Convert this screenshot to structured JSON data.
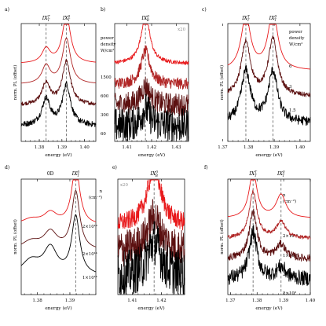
{
  "colors": {
    "red": "#e8181a",
    "mid": "#b02424",
    "dark": "#5c1111",
    "black": "#000000",
    "dash": "#6e6e6e"
  },
  "chart_data": [
    {
      "id": "a",
      "type": "line",
      "panel_label": "a)",
      "xlabel": "energy (eV)",
      "ylabel": "norm. PL (offset)",
      "xlim": [
        1.372,
        1.405
      ],
      "x_ticks": [
        "1.38",
        "1.39",
        "1.40"
      ],
      "x_tick_values": [
        1.38,
        1.39,
        1.4
      ],
      "dashed_markers": [
        {
          "label": "IX",
          "sup": "T",
          "sub": "T",
          "x": 1.383
        },
        {
          "label": "IX",
          "sup": "0",
          "sub": "T",
          "x": 1.392
        }
      ],
      "legend_header": [
        "power",
        "density",
        "W/cm²"
      ],
      "peaks": [
        {
          "center": 1.383,
          "width": 0.0022
        },
        {
          "center": 1.392,
          "width": 0.0022
        }
      ],
      "series": [
        {
          "name": "1500",
          "color": "red",
          "amplitudes": [
            0.3,
            1.0
          ],
          "noise": 0.0
        },
        {
          "name": "600",
          "color": "mid",
          "amplitudes": [
            0.38,
            0.95
          ],
          "noise": 0.0
        },
        {
          "name": "300",
          "color": "dark",
          "amplitudes": [
            0.45,
            0.9
          ],
          "noise": 0.01
        },
        {
          "name": "60",
          "color": "black",
          "amplitudes": [
            0.55,
            0.85
          ],
          "noise": 0.015
        }
      ]
    },
    {
      "id": "b",
      "type": "line",
      "panel_label": "b)",
      "xlabel": "energy (eV)",
      "ylabel": "",
      "xlim": [
        1.405,
        1.435
      ],
      "x_ticks": [
        "1.41",
        "1.42",
        "1.43"
      ],
      "x_tick_values": [
        1.41,
        1.42,
        1.43
      ],
      "dashed_markers": [
        {
          "label": "IX",
          "sup": "0",
          "sub": "B",
          "x": 1.4175
        }
      ],
      "scale_note": "x20",
      "peaks": [
        {
          "center": 1.4175,
          "width": 0.0022
        }
      ],
      "series": [
        {
          "name": "",
          "color": "red",
          "amplitudes": [
            1.0
          ],
          "noise": 0.01
        },
        {
          "name": "",
          "color": "mid",
          "amplitudes": [
            0.7
          ],
          "noise": 0.03
        },
        {
          "name": "",
          "color": "dark",
          "amplitudes": [
            0.4
          ],
          "noise": 0.06
        },
        {
          "name": "",
          "color": "black",
          "amplitudes": [
            0.35
          ],
          "noise": 0.09
        }
      ]
    },
    {
      "id": "c",
      "type": "line",
      "panel_label": "c)",
      "xlabel": "energy (eV)",
      "ylabel": "norm. PL (offset)",
      "xlim": [
        1.372,
        1.404
      ],
      "x_ticks": [
        "1.37",
        "1.38",
        "1.39",
        "1.40"
      ],
      "x_tick_values": [
        1.37,
        1.38,
        1.39,
        1.4
      ],
      "dashed_markers": [
        {
          "label": "IX",
          "sup": "T",
          "sub": "T",
          "x": 1.379
        },
        {
          "label": "IX",
          "sup": "0",
          "sub": "T",
          "x": 1.3895
        }
      ],
      "legend_header": [
        "power",
        "density",
        "W/cm²"
      ],
      "peaks": [
        {
          "center": 1.379,
          "width": 0.0022
        },
        {
          "center": 1.3895,
          "width": 0.0022
        }
      ],
      "series": [
        {
          "name": "6",
          "color": "red",
          "amplitudes": [
            0.9,
            1.0
          ],
          "noise": 0.0
        },
        {
          "name": "3",
          "color": "dark",
          "amplitudes": [
            0.9,
            0.95
          ],
          "noise": 0.01
        },
        {
          "name": "1.5",
          "color": "black",
          "amplitudes": [
            0.85,
            0.85
          ],
          "noise": 0.02
        }
      ]
    },
    {
      "id": "d",
      "type": "line",
      "panel_label": "d)",
      "xlabel": "energy (eV)",
      "ylabel": "norm. PL (offset)",
      "xlim": [
        1.375,
        1.398
      ],
      "x_ticks": [
        "1.38",
        "1.39"
      ],
      "x_tick_values": [
        1.38,
        1.39
      ],
      "dashed_markers": [
        {
          "label": "IX",
          "sup": "0",
          "sub": "T",
          "x": 1.3918
        }
      ],
      "top_note": "0D",
      "peaks": [
        {
          "center": 1.3918,
          "width": 0.0015
        },
        {
          "center": 1.384,
          "width": 0.0025
        },
        {
          "center": 1.378,
          "width": 0.0035
        }
      ],
      "series": [
        {
          "name": "",
          "color": "red",
          "amplitudes": [
            1.0,
            0.2,
            0.1
          ],
          "noise": 0.0
        },
        {
          "name": "",
          "color": "dark",
          "amplitudes": [
            1.0,
            0.3,
            0.15
          ],
          "noise": 0.0
        },
        {
          "name": "",
          "color": "black",
          "amplitudes": [
            1.0,
            0.45,
            0.25
          ],
          "noise": 0.0
        }
      ]
    },
    {
      "id": "e",
      "type": "line",
      "panel_label": "e)",
      "xlabel": "energy (eV)",
      "ylabel": "",
      "xlim": [
        1.405,
        1.428
      ],
      "x_ticks": [
        "1.41",
        "1.42"
      ],
      "x_tick_values": [
        1.41,
        1.42
      ],
      "dashed_markers": [
        {
          "label": "IX",
          "sup": "0",
          "sub": "B",
          "x": 1.4175
        }
      ],
      "scale_note": "x20",
      "legend_header": [
        "n",
        "(cm⁻²)"
      ],
      "peaks": [
        {
          "center": 1.4175,
          "width": 0.0028
        }
      ],
      "series": [
        {
          "name": "2×10¹²",
          "color": "red",
          "amplitudes": [
            1.0
          ],
          "noise": 0.04
        },
        {
          "name": "2×10¹¹",
          "color": "dark",
          "amplitudes": [
            0.6
          ],
          "noise": 0.08
        },
        {
          "name": "1×10¹¹",
          "color": "black",
          "amplitudes": [
            0.6
          ],
          "noise": 0.1
        }
      ]
    },
    {
      "id": "f",
      "type": "line",
      "panel_label": "f)",
      "xlabel": "energy (eV)",
      "ylabel": "norm. PL (offset)",
      "xlim": [
        1.369,
        1.4
      ],
      "x_ticks": [
        "1.37",
        "1.38",
        "1.39",
        "1.40"
      ],
      "x_tick_values": [
        1.37,
        1.38,
        1.39,
        1.4
      ],
      "dashed_markers": [
        {
          "label": "IX",
          "sup": "T",
          "sub": "T",
          "x": 1.3785
        },
        {
          "label": "IX",
          "sup": "0",
          "sub": "T",
          "x": 1.389
        }
      ],
      "legend_header": [
        "n",
        "(cm⁻²)"
      ],
      "peaks": [
        {
          "center": 1.3785,
          "width": 0.0018
        },
        {
          "center": 1.389,
          "width": 0.0022
        }
      ],
      "series": [
        {
          "name": "2×10¹⁰",
          "color": "red",
          "amplitudes": [
            1.0,
            0.5
          ],
          "noise": 0.0
        },
        {
          "name": "1×10¹⁰",
          "color": "mid",
          "amplitudes": [
            1.0,
            0.35
          ],
          "noise": 0.01
        },
        {
          "name": "2×10⁹",
          "color": "dark",
          "amplitudes": [
            1.0,
            0.3
          ],
          "noise": 0.02
        },
        {
          "name": "2×10⁸",
          "color": "black",
          "amplitudes": [
            1.0,
            0.25
          ],
          "noise": 0.04
        }
      ]
    }
  ]
}
